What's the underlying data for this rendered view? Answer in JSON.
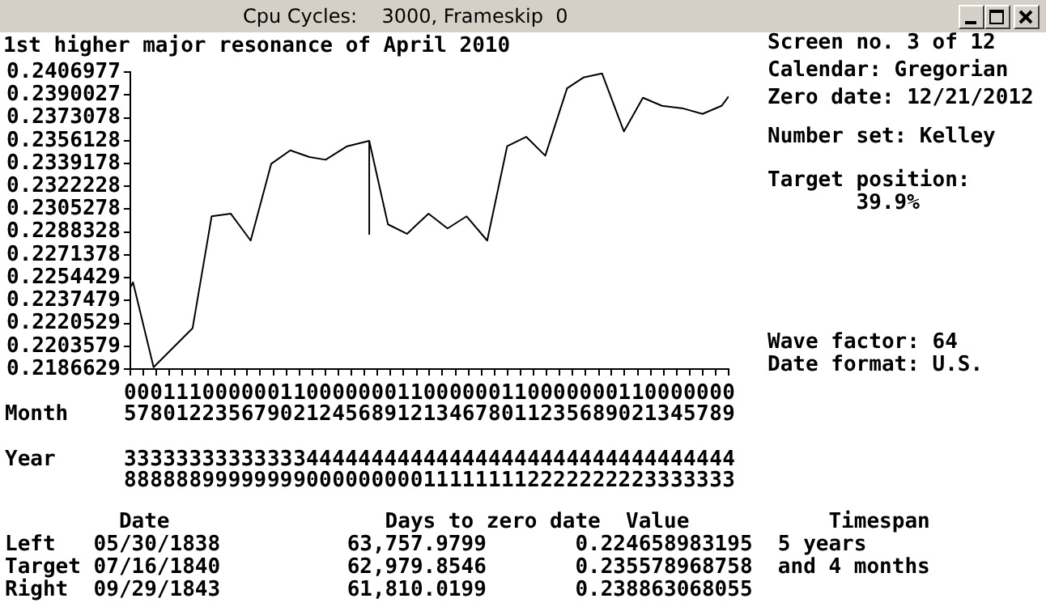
{
  "chart_data": {
    "type": "line",
    "title": "1st higher major resonance of April 2010",
    "subtitle": "Cpu Cycles:    3000, Frameskip  0",
    "xlabel": "Month",
    "annotations": [
      "Year",
      "Screen no. 3 of 12",
      "Calendar: Gregorian",
      "Zero date: 12/21/2012",
      "Number set: Kelley",
      "Target position:",
      "       39.9%",
      "Wave factor: 64",
      "Date format: U.S.",
      "         Date                 Days to zero date  Value           Timespan",
      "Left   05/30/1838          63,757.9799       0.224658983195  5 years",
      "Target 07/16/1840          62,979.8546       0.235578968758  and 4 months",
      "Right  09/29/1843          61,810.0199       0.238863068055"
    ],
    "x": [
      "1838-05-30",
      "1838-06-08",
      "1838-08-14",
      "1838-12-19",
      "1839-02-19",
      "1839-04-22",
      "1839-06-26",
      "1839-09-01",
      "1839-11-02",
      "1840-01-03",
      "1840-02-25",
      "1840-05-05",
      "1840-07-16",
      "1840-09-15",
      "1840-11-16",
      "1841-01-25",
      "1841-03-28",
      "1841-05-29",
      "1841-08-04",
      "1841-10-08",
      "1841-12-09",
      "1842-02-09",
      "1842-04-21",
      "1842-06-13",
      "1842-08-13",
      "1842-10-23",
      "1842-12-24",
      "1843-02-24",
      "1843-05-05",
      "1843-07-06",
      "1843-09-06",
      "1843-09-29"
    ],
    "values": [
      0.2247,
      0.2251,
      0.2188,
      0.2217,
      0.23,
      0.2302,
      0.2282,
      0.2339,
      0.2349,
      0.2344,
      0.2342,
      0.2352,
      0.2356,
      0.2294,
      0.2287,
      0.2302,
      0.2291,
      0.23,
      0.2282,
      0.2352,
      0.2359,
      0.2345,
      0.2395,
      0.2403,
      0.2406,
      0.2363,
      0.2388,
      0.2382,
      0.238,
      0.2376,
      0.2382,
      0.2389
    ],
    "color": "#000000",
    "marker": "none",
    "line_style": "solid",
    "grid": false,
    "legend": false,
    "ylim": [
      0.2186629,
      0.2406977
    ],
    "yticks": [
      0.2406977,
      0.2390027,
      0.2373078,
      0.2356128,
      0.2339178,
      0.2322228,
      0.2305278,
      0.2288328,
      0.2271378,
      0.2254429,
      0.2237479,
      0.2220529,
      0.2203579,
      0.2186629
    ],
    "xlim": [
      "1838-05-30",
      "1843-09-29"
    ],
    "xticks": [
      {
        "value": "1838-05-30",
        "label": "0538"
      },
      {
        "value": "1838-07-11",
        "label": "0738"
      },
      {
        "value": "1838-08-23",
        "label": "0838"
      },
      {
        "value": "1838-10-04",
        "label": "1038"
      },
      {
        "value": "1838-11-15",
        "label": "1138"
      },
      {
        "value": "1838-12-28",
        "label": "1238"
      },
      {
        "value": "1839-02-08",
        "label": "0239"
      },
      {
        "value": "1839-03-22",
        "label": "0339"
      },
      {
        "value": "1839-05-04",
        "label": "0539"
      },
      {
        "value": "1839-06-15",
        "label": "0639"
      },
      {
        "value": "1839-07-27",
        "label": "0739"
      },
      {
        "value": "1839-09-08",
        "label": "0939"
      },
      {
        "value": "1839-10-20",
        "label": "1039"
      },
      {
        "value": "1839-12-02",
        "label": "1239"
      },
      {
        "value": "1840-01-13",
        "label": "0140"
      },
      {
        "value": "1840-02-24",
        "label": "0240"
      },
      {
        "value": "1840-04-07",
        "label": "0440"
      },
      {
        "value": "1840-05-19",
        "label": "0540"
      },
      {
        "value": "1840-06-30",
        "label": "0640"
      },
      {
        "value": "1840-08-12",
        "label": "0840"
      },
      {
        "value": "1840-09-23",
        "label": "0940"
      },
      {
        "value": "1840-11-04",
        "label": "1140"
      },
      {
        "value": "1840-12-17",
        "label": "1240"
      },
      {
        "value": "1841-01-28",
        "label": "0141"
      },
      {
        "value": "1841-03-11",
        "label": "0341"
      },
      {
        "value": "1841-04-23",
        "label": "0441"
      },
      {
        "value": "1841-06-04",
        "label": "0641"
      },
      {
        "value": "1841-07-16",
        "label": "0741"
      },
      {
        "value": "1841-08-28",
        "label": "0841"
      },
      {
        "value": "1841-10-09",
        "label": "1041"
      },
      {
        "value": "1841-11-20",
        "label": "1141"
      },
      {
        "value": "1842-01-02",
        "label": "0142"
      },
      {
        "value": "1842-02-13",
        "label": "0242"
      },
      {
        "value": "1842-03-27",
        "label": "0342"
      },
      {
        "value": "1842-05-09",
        "label": "0542"
      },
      {
        "value": "1842-06-20",
        "label": "0642"
      },
      {
        "value": "1842-08-02",
        "label": "0842"
      },
      {
        "value": "1842-09-13",
        "label": "0942"
      },
      {
        "value": "1842-10-25",
        "label": "1042"
      },
      {
        "value": "1842-12-07",
        "label": "1242"
      },
      {
        "value": "1843-01-18",
        "label": "0143"
      },
      {
        "value": "1843-03-01",
        "label": "0343"
      },
      {
        "value": "1843-04-13",
        "label": "0443"
      },
      {
        "value": "1843-05-25",
        "label": "0543"
      },
      {
        "value": "1843-07-06",
        "label": "0743"
      },
      {
        "value": "1843-08-18",
        "label": "0843"
      },
      {
        "value": "1843-09-29",
        "label": "0943"
      }
    ],
    "ref_lines": [
      {
        "axis": "x",
        "value": "1840-07-16",
        "color": "#000000"
      }
    ]
  }
}
